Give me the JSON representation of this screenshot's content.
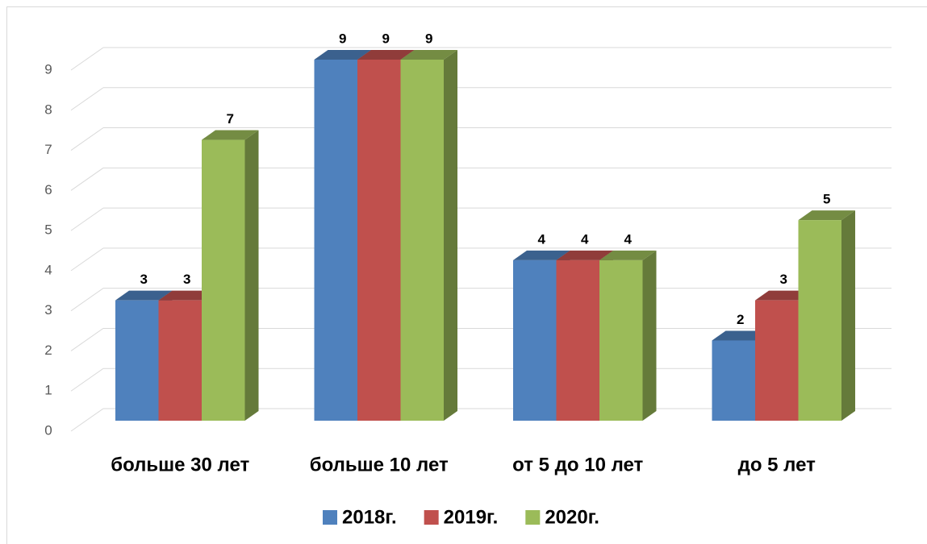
{
  "chart_data": {
    "type": "bar3d",
    "categories": [
      "больше 30 лет",
      "больше 10 лет",
      "от 5 до 10 лет",
      "до 5 лет"
    ],
    "series": [
      {
        "name": "2018г.",
        "color": "#4f81bd",
        "values": [
          3,
          9,
          4,
          2
        ]
      },
      {
        "name": "2019г.",
        "color": "#c0504d",
        "values": [
          3,
          9,
          4,
          3
        ]
      },
      {
        "name": "2020г.",
        "color": "#9bbb59",
        "values": [
          7,
          9,
          4,
          5
        ]
      }
    ],
    "ylim": [
      0,
      9
    ],
    "yticks": [
      0,
      1,
      2,
      3,
      4,
      5,
      6,
      7,
      8,
      9
    ],
    "grid": true,
    "legend": "bottom"
  }
}
